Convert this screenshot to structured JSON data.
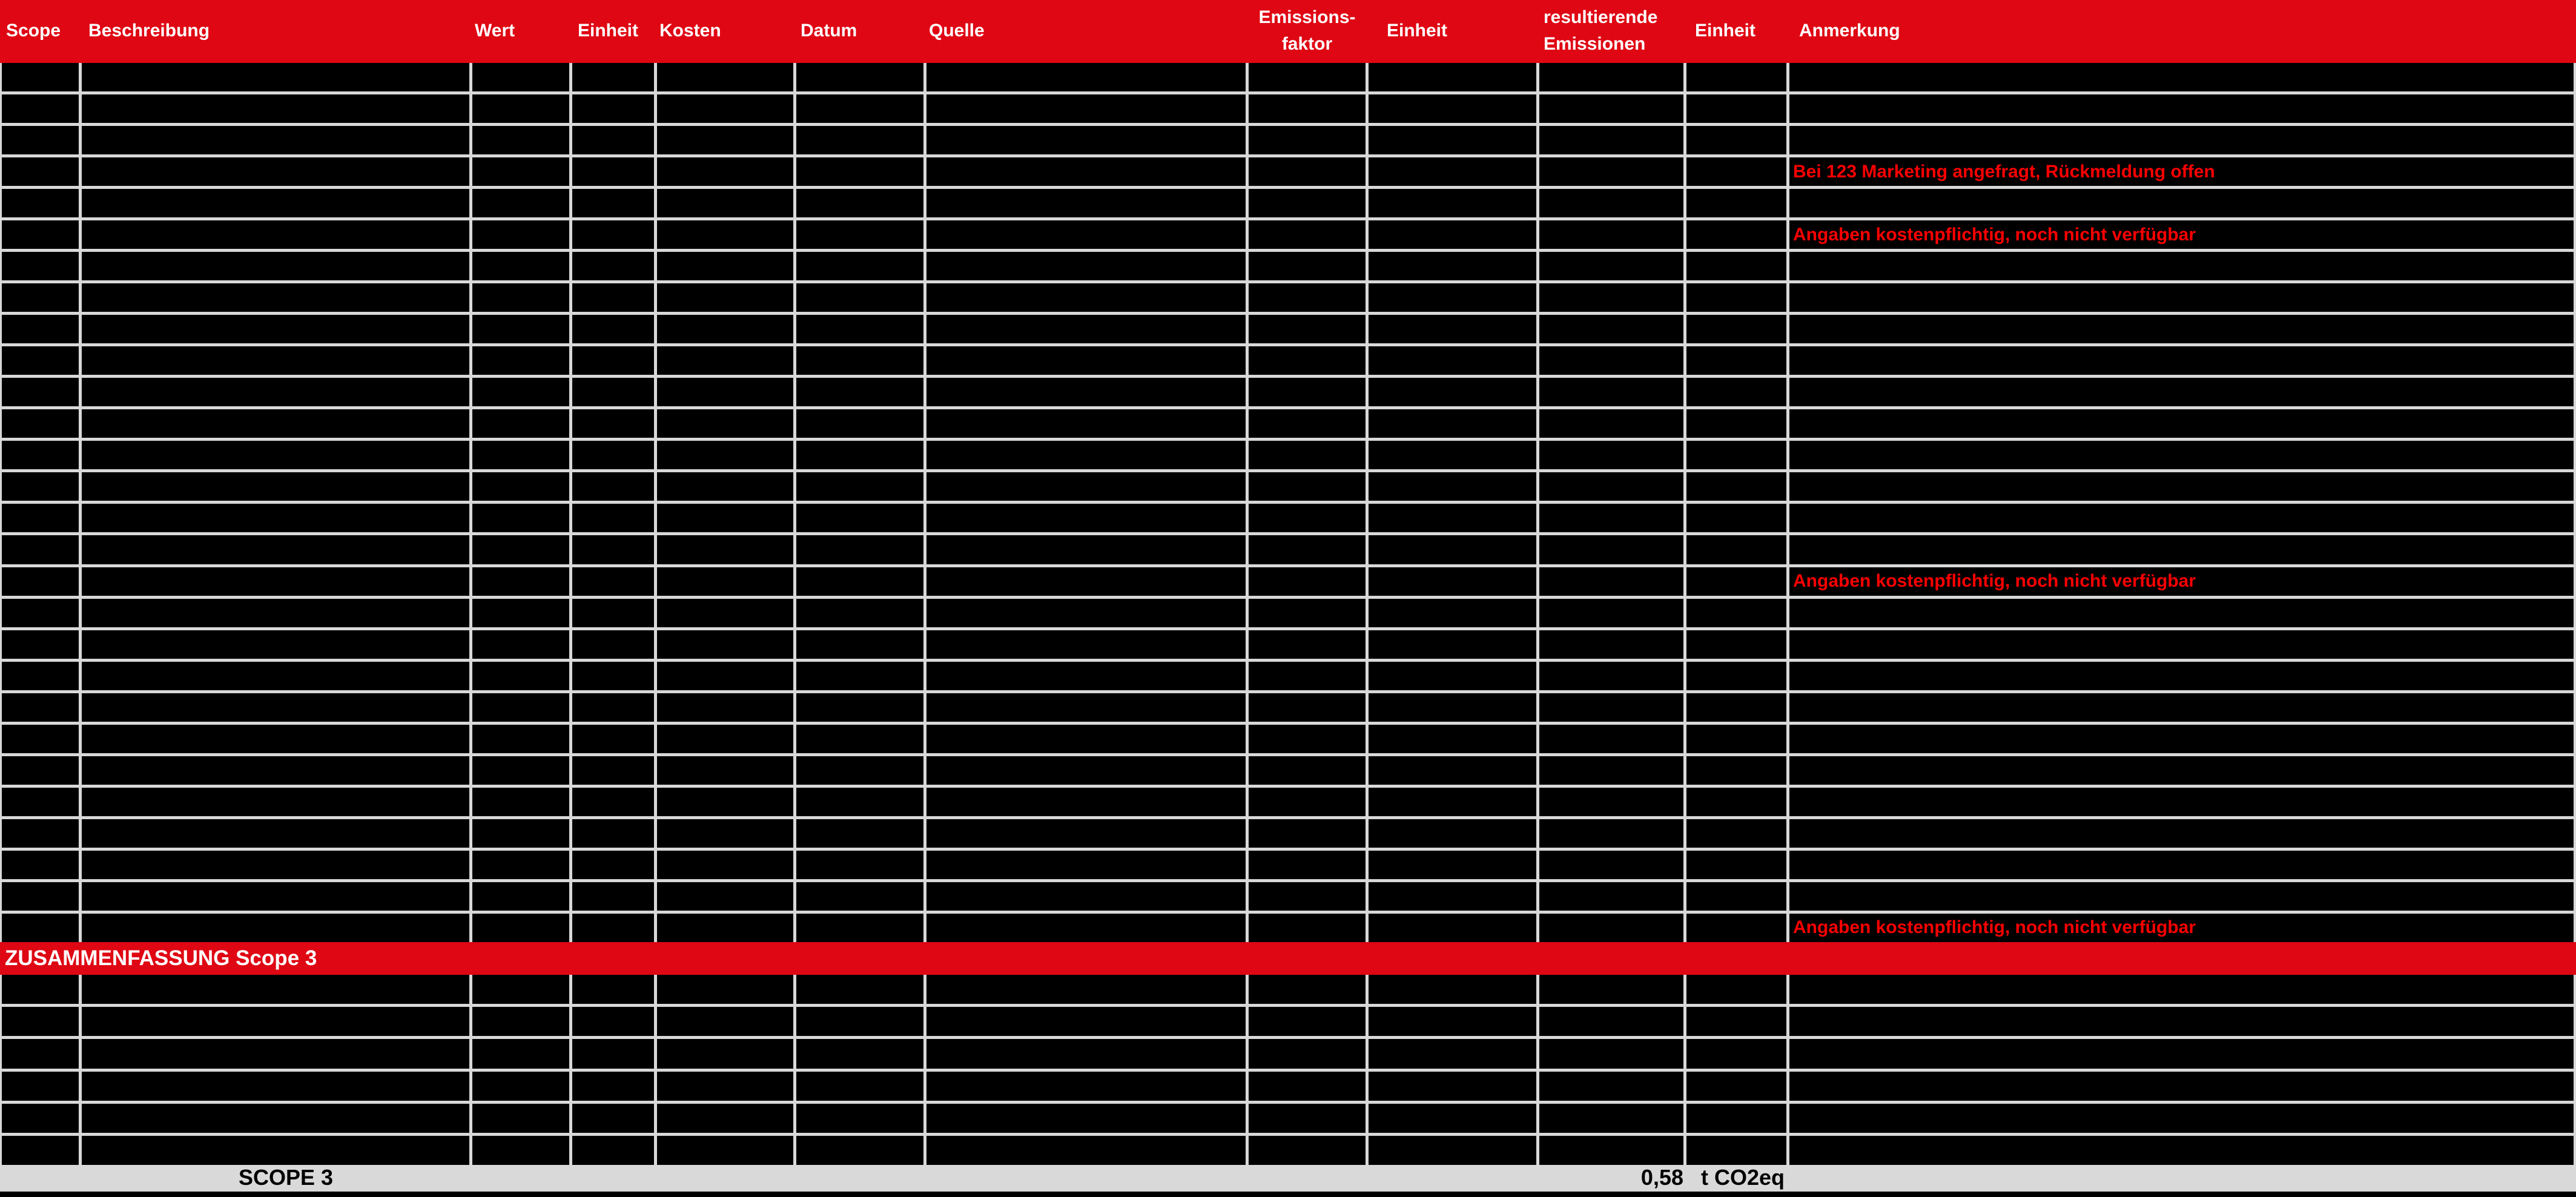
{
  "colors": {
    "band_red": "#df0713",
    "note_red": "#fb0000",
    "grid_gray": "#d8d8d8",
    "footer_gray": "#d9d9d9",
    "cell_black": "#000000",
    "header_text": "#ffffff",
    "footer_text": "#000000"
  },
  "table": {
    "columns": [
      {
        "key": "scope",
        "label": "Scope"
      },
      {
        "key": "beschreibung",
        "label": "Beschreibung"
      },
      {
        "key": "wert",
        "label": "Wert"
      },
      {
        "key": "einheit-1",
        "label": "Einheit"
      },
      {
        "key": "kosten",
        "label": "Kosten"
      },
      {
        "key": "datum",
        "label": "Datum"
      },
      {
        "key": "quelle",
        "label": "Quelle"
      },
      {
        "key": "emissionsfaktor",
        "label": "Emissions-",
        "label2": "faktor"
      },
      {
        "key": "einheit-2",
        "label": "Einheit"
      },
      {
        "key": "resultierende-emissionen",
        "label": "resultierende",
        "label2": "Emissionen"
      },
      {
        "key": "einheit-3",
        "label": "Einheit"
      },
      {
        "key": "anmerkung",
        "label": "Anmerkung"
      }
    ],
    "body_rows": [
      "",
      "",
      "",
      "Bei 123 Marketing angefragt, Rückmeldung offen",
      "",
      "Angaben kostenpflichtig, noch nicht verfügbar",
      "",
      "",
      "",
      "",
      "",
      "",
      "",
      "",
      "",
      "",
      "Angaben kostenpflichtig, noch nicht verfügbar",
      "",
      "",
      "",
      "",
      "",
      "",
      "",
      "",
      "",
      "",
      "Angaben kostenpflichtig, noch nicht verfügbar"
    ],
    "rows_after_summary": [
      "",
      "",
      "",
      "",
      "",
      ""
    ]
  },
  "summary": {
    "label": "ZUSAMMENFASSUNG Scope 3"
  },
  "footer": {
    "label": "SCOPE 3",
    "value": "0,58",
    "unit": "t CO2eq"
  }
}
